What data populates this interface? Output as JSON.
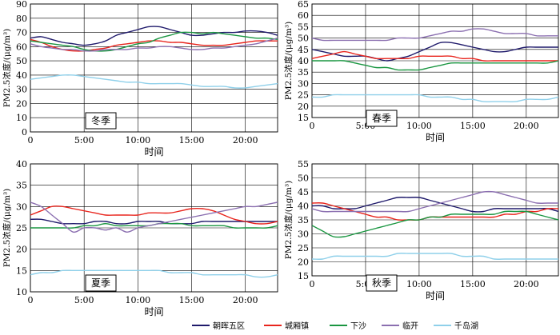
{
  "legend": [
    {
      "name": "朝晖五区",
      "color": "#1f1a6b"
    },
    {
      "name": "城厢镇",
      "color": "#e8251d"
    },
    {
      "name": "下沙",
      "color": "#1a9641"
    },
    {
      "name": "临开",
      "color": "#8b6fb0"
    },
    {
      "name": "千岛湖",
      "color": "#8fd0ea"
    }
  ],
  "chart_data": [
    {
      "type": "line",
      "season_label": "冬季",
      "xlabel": "时间",
      "ylabel": "PM2.5浓度/(μg/m³)",
      "xlim": [
        0,
        23
      ],
      "ylim": [
        0,
        90
      ],
      "x_ticks": [
        0,
        5,
        10,
        15,
        20
      ],
      "x_tick_labels": [
        "0",
        "5:00",
        "10:00",
        "15:00",
        "20:00"
      ],
      "y_ticks": [
        0,
        10,
        20,
        30,
        40,
        50,
        60,
        70,
        80,
        90
      ],
      "x": [
        0,
        1,
        2,
        3,
        4,
        5,
        6,
        7,
        8,
        9,
        10,
        11,
        12,
        13,
        14,
        15,
        16,
        17,
        18,
        19,
        20,
        21,
        22,
        23
      ],
      "series": [
        {
          "name": "朝晖五区",
          "values": [
            66,
            67,
            65,
            63,
            62,
            61,
            62,
            64,
            68,
            70,
            72,
            74,
            74,
            72,
            70,
            68,
            68,
            69,
            70,
            70,
            71,
            71,
            70,
            68
          ]
        },
        {
          "name": "城厢镇",
          "values": [
            65,
            63,
            60,
            58,
            57,
            57,
            58,
            59,
            61,
            62,
            63,
            64,
            64,
            63,
            63,
            62,
            61,
            61,
            61,
            62,
            63,
            64,
            64,
            64
          ]
        },
        {
          "name": "下沙",
          "values": [
            64,
            63,
            62,
            61,
            60,
            58,
            57,
            57,
            58,
            60,
            62,
            63,
            66,
            68,
            70,
            70,
            69,
            70,
            69,
            68,
            67,
            66,
            66,
            65
          ]
        },
        {
          "name": "临开",
          "values": [
            62,
            60,
            59,
            58,
            58,
            57,
            57,
            58,
            58,
            58,
            59,
            59,
            60,
            60,
            59,
            58,
            58,
            59,
            59,
            60,
            61,
            62,
            64,
            66
          ]
        },
        {
          "name": "千岛湖",
          "values": [
            37,
            38,
            39,
            40,
            40,
            39,
            38,
            37,
            36,
            35,
            35,
            34,
            34,
            34,
            34,
            33,
            32,
            32,
            32,
            31,
            31,
            32,
            33,
            34
          ]
        }
      ]
    },
    {
      "type": "line",
      "season_label": "春季",
      "xlabel": "时间",
      "ylabel": "PM2.5浓度/(μg/m³)",
      "xlim": [
        0,
        23
      ],
      "ylim": [
        15,
        65
      ],
      "x_ticks": [
        0,
        5,
        10,
        15,
        20
      ],
      "x_tick_labels": [
        "0",
        "5:00",
        "10:00",
        "15:00",
        "20:00"
      ],
      "y_ticks": [
        15,
        20,
        25,
        30,
        35,
        40,
        45,
        50,
        55,
        60,
        65
      ],
      "x": [
        0,
        1,
        2,
        3,
        4,
        5,
        6,
        7,
        8,
        9,
        10,
        11,
        12,
        13,
        14,
        15,
        16,
        17,
        18,
        19,
        20,
        21,
        22,
        23
      ],
      "series": [
        {
          "name": "朝晖五区",
          "values": [
            45,
            44,
            43,
            42,
            42,
            42,
            41,
            40,
            41,
            42,
            44,
            46,
            48,
            48,
            47,
            46,
            45,
            44,
            44,
            45,
            46,
            46,
            46,
            46
          ]
        },
        {
          "name": "城厢镇",
          "values": [
            41,
            42,
            43,
            44,
            43,
            42,
            41,
            41,
            41,
            41,
            42,
            42,
            42,
            42,
            41,
            41,
            40,
            40,
            40,
            40,
            40,
            40,
            40,
            40
          ]
        },
        {
          "name": "下沙",
          "values": [
            40,
            40,
            40,
            40,
            39,
            38,
            37,
            37,
            36,
            36,
            36,
            37,
            38,
            39,
            39,
            39,
            39,
            39,
            39,
            39,
            39,
            39,
            39,
            40
          ]
        },
        {
          "name": "临开",
          "values": [
            50,
            49,
            49,
            49,
            49,
            49,
            49,
            49,
            50,
            50,
            50,
            51,
            52,
            53,
            53,
            54,
            54,
            53,
            52,
            52,
            52,
            51,
            51,
            51
          ]
        },
        {
          "name": "千岛湖",
          "values": [
            24,
            24,
            25,
            25,
            25,
            25,
            25,
            25,
            25,
            25,
            25,
            24,
            24,
            24,
            23,
            23,
            22,
            22,
            22,
            22,
            23,
            23,
            23,
            24
          ]
        }
      ]
    },
    {
      "type": "line",
      "season_label": "夏季",
      "xlabel": "时间",
      "ylabel": "PM2.5浓度/(μg/m³)",
      "xlim": [
        0,
        23
      ],
      "ylim": [
        10,
        40
      ],
      "x_ticks": [
        0,
        5,
        10,
        15,
        20
      ],
      "x_tick_labels": [
        "0",
        "5:00",
        "10:00",
        "15:00",
        "20:00"
      ],
      "y_ticks": [
        10,
        15,
        20,
        25,
        30,
        35,
        40
      ],
      "x": [
        0,
        1,
        2,
        3,
        4,
        5,
        6,
        7,
        8,
        9,
        10,
        11,
        12,
        13,
        14,
        15,
        16,
        17,
        18,
        19,
        20,
        21,
        22,
        23
      ],
      "series": [
        {
          "name": "朝晖五区",
          "values": [
            27,
            27,
            26.5,
            26,
            26,
            26,
            26.5,
            26.5,
            26,
            26,
            26.5,
            26.5,
            26.5,
            26,
            26,
            26,
            26.5,
            26.5,
            26.5,
            26.5,
            26.5,
            26.5,
            26.5,
            26.5
          ]
        },
        {
          "name": "城厢镇",
          "values": [
            28,
            29,
            30,
            30,
            29.5,
            29,
            28.5,
            28,
            28,
            28,
            28,
            28.5,
            28.5,
            28.5,
            29,
            29.5,
            29.5,
            29,
            28,
            27,
            26.5,
            26,
            26,
            26.5
          ]
        },
        {
          "name": "下沙",
          "values": [
            25,
            25,
            25,
            25,
            25,
            25.5,
            25.5,
            26,
            25.5,
            25.5,
            25.5,
            25.5,
            26,
            26,
            26,
            25.5,
            25.5,
            25.5,
            25.5,
            25,
            25,
            25,
            25,
            25.5
          ]
        },
        {
          "name": "临开",
          "values": [
            31,
            30,
            28,
            26,
            24,
            25,
            25,
            24.5,
            25,
            24,
            25,
            25.5,
            26,
            26.5,
            27,
            27.5,
            28,
            28.5,
            29,
            29.5,
            30,
            30,
            30.5,
            31
          ]
        },
        {
          "name": "千岛湖",
          "values": [
            14,
            14.5,
            14.5,
            15,
            15,
            15,
            15,
            15,
            15,
            15,
            15,
            15,
            15,
            14.5,
            14.5,
            14.5,
            14,
            14,
            14,
            14,
            14,
            13.5,
            13.5,
            14
          ]
        }
      ]
    },
    {
      "type": "line",
      "season_label": "秋季",
      "xlabel": "时间",
      "ylabel": "PM2.5浓度/(μg/m³)",
      "xlim": [
        0,
        23
      ],
      "ylim": [
        15,
        55
      ],
      "x_ticks": [
        0,
        5,
        10,
        15,
        20
      ],
      "x_tick_labels": [
        "0",
        "5:00",
        "10:00",
        "15:00",
        "20:00"
      ],
      "y_ticks": [
        15,
        20,
        25,
        30,
        35,
        40,
        45,
        50,
        55
      ],
      "x": [
        0,
        1,
        2,
        3,
        4,
        5,
        6,
        7,
        8,
        9,
        10,
        11,
        12,
        13,
        14,
        15,
        16,
        17,
        18,
        19,
        20,
        21,
        22,
        23
      ],
      "series": [
        {
          "name": "朝晖五区",
          "values": [
            40,
            40,
            39,
            39,
            39,
            40,
            41,
            42,
            43,
            43,
            43,
            42,
            41,
            40,
            39,
            38,
            38,
            39,
            39,
            39,
            39,
            39,
            39,
            38
          ]
        },
        {
          "name": "城厢镇",
          "values": [
            41,
            41,
            40,
            39,
            38,
            37,
            36,
            36,
            35,
            35,
            35,
            36,
            36,
            36,
            36,
            36,
            36,
            36,
            37,
            37,
            38,
            38,
            39,
            39
          ]
        },
        {
          "name": "下沙",
          "values": [
            33,
            31,
            29,
            29,
            30,
            31,
            32,
            33,
            34,
            35,
            35,
            36,
            36,
            37,
            37,
            37,
            37,
            37,
            38,
            38,
            38,
            37,
            36,
            35
          ]
        },
        {
          "name": "临开",
          "values": [
            39,
            38,
            38,
            38,
            38,
            38,
            38,
            38,
            38,
            38,
            39,
            40,
            41,
            42,
            43,
            44,
            45,
            45,
            44,
            43,
            42,
            41,
            41,
            41
          ]
        },
        {
          "name": "千岛湖",
          "values": [
            21,
            21,
            22,
            22,
            22,
            22,
            22,
            22,
            23,
            23,
            23,
            23,
            23,
            23,
            22,
            22,
            22,
            21,
            21,
            21,
            21,
            21,
            21,
            21
          ]
        }
      ]
    }
  ]
}
